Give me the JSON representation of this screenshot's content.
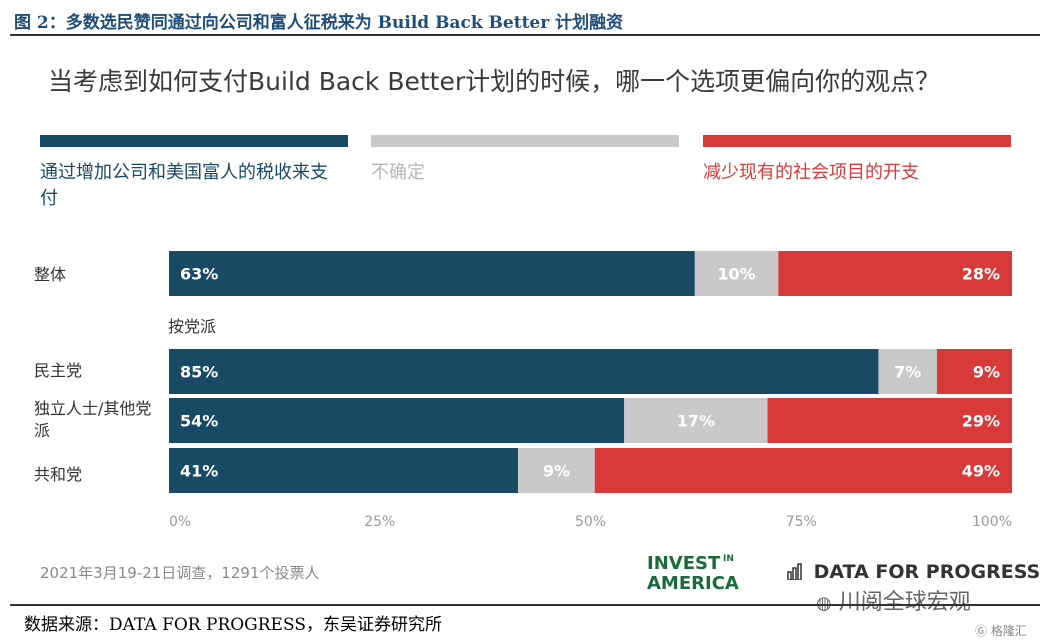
{
  "figure_title": "图 2：多数选民赞同通过向公司和富人征税来为 Build Back Better 计划融资",
  "question": "当考虑到如何支付Build Back Better计划的时候，哪一个选项更偏向你的观点？",
  "group_label": "按党派",
  "survey_note": "2021年3月19-21日调查，1291个投票人",
  "source": "数据来源：DATA FOR PROGRESS，东吴证券研究所",
  "logos": {
    "invest": "INVEST IN AMERICA",
    "dfp": "DATA FOR PROGRESS"
  },
  "watermark": "川阅全球宏观",
  "watermark2": "格隆汇",
  "colors": {
    "tax": "#184a66",
    "unsure": "#cbc8cb",
    "cut": "#d83a3a"
  },
  "chart_data": {
    "type": "bar",
    "orientation": "horizontal",
    "stacked": true,
    "categories": [
      "整体",
      "民主党",
      "独立人士/其他党派",
      "共和党"
    ],
    "series": [
      {
        "name": "通过增加公司和美国富人的税收来支付",
        "values": [
          63,
          85,
          54,
          41
        ],
        "labels": [
          "63%",
          "85%",
          "54%",
          "41%"
        ]
      },
      {
        "name": "不确定",
        "values": [
          10,
          7,
          17,
          9
        ],
        "labels": [
          "10%",
          "7%",
          "17%",
          "9%"
        ]
      },
      {
        "name": "减少现有的社会项目的开支",
        "values": [
          28,
          9,
          29,
          49
        ],
        "labels": [
          "28%",
          "9%",
          "29%",
          "49%"
        ]
      }
    ],
    "xticks": [
      "0%",
      "25%",
      "50%",
      "75%",
      "100%"
    ],
    "xlim": [
      0,
      100
    ]
  }
}
